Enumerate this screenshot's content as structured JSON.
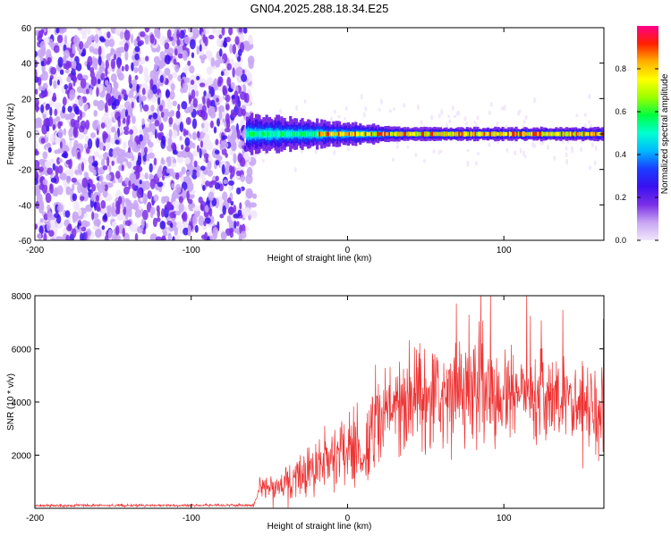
{
  "title": "GN04.2025.288.18.34.E25",
  "colors": {
    "snr_line": "#ee3333",
    "axis": "#000000"
  },
  "chart_data": [
    {
      "type": "heatmap",
      "xlabel": "Height of straight line (km)",
      "ylabel": "Frequency (Hz)",
      "xlim": [
        -200,
        164
      ],
      "ylim": [
        -60,
        60
      ],
      "xticks": [
        -200,
        -100,
        0,
        100
      ],
      "yticks": [
        -60,
        -40,
        -20,
        0,
        20,
        40,
        60
      ],
      "colorbar": {
        "label": "Normalized spectral amplitude",
        "range": [
          0,
          1
        ],
        "ticks": [
          0.0,
          0.2,
          0.4,
          0.6,
          0.8
        ],
        "colormap": [
          "#f1e6fb",
          "#c8a6f4",
          "#7a2ee6",
          "#3a10f0",
          "#1a3cff",
          "#00b8ff",
          "#00ffd0",
          "#00ff40",
          "#9cff00",
          "#ffff00",
          "#ffb000",
          "#ff2000",
          "#ff0088"
        ]
      },
      "regions": [
        {
          "x": [
            -200,
            -64
          ],
          "freq": [
            -60,
            60
          ],
          "pattern": "broadband noise",
          "amplitude": [
            0.0,
            0.2
          ]
        },
        {
          "x": [
            -64,
            164
          ],
          "center_freq": 0,
          "halfwidth": [
            6,
            2
          ],
          "pattern": "narrow tone",
          "amplitude": [
            0.3,
            0.95
          ]
        }
      ]
    },
    {
      "type": "line",
      "xlabel": "Height of straight line (km)",
      "ylabel": "SNR (10 * v/v)",
      "xlim": [
        -200,
        164
      ],
      "ylim": [
        0,
        8000
      ],
      "xticks": [
        -200,
        -100,
        0,
        100
      ],
      "yticks": [
        2000,
        4000,
        6000,
        8000
      ],
      "series": [
        {
          "x": [
            -200,
            -150,
            -100,
            -60,
            -55,
            -50,
            -40,
            -30,
            -20,
            -10,
            0,
            5,
            10,
            15,
            20,
            30,
            40,
            50,
            60,
            70,
            80,
            90,
            100,
            110,
            120,
            130,
            140,
            150,
            160,
            164
          ],
          "values": [
            100,
            110,
            110,
            120,
            800,
            700,
            900,
            1200,
            1600,
            2000,
            2300,
            2800,
            1600,
            3000,
            3400,
            3800,
            4100,
            4200,
            4300,
            4300,
            4200,
            4300,
            4200,
            4200,
            4100,
            4100,
            4000,
            3900,
            3800,
            3700
          ]
        }
      ]
    }
  ]
}
